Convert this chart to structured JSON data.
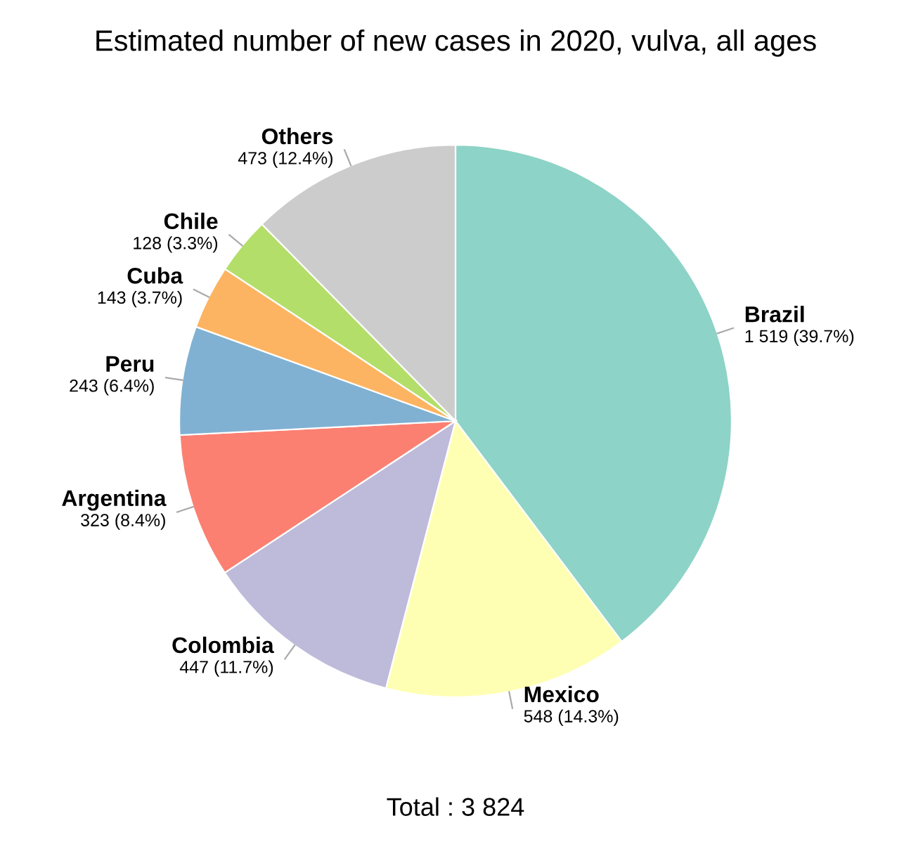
{
  "chart_data": {
    "type": "pie",
    "title": "Estimated number of new cases in 2020, vulva, all ages",
    "categories": [
      "Brazil",
      "Mexico",
      "Colombia",
      "Argentina",
      "Peru",
      "Cuba",
      "Chile",
      "Others"
    ],
    "values": [
      1519,
      548,
      447,
      323,
      243,
      143,
      128,
      473
    ],
    "value_labels": [
      "1 519 (39.7%)",
      "548 (14.3%)",
      "447 (11.7%)",
      "323 (8.4%)",
      "243 (6.4%)",
      "143 (3.7%)",
      "128 (3.3%)",
      "473 (12.4%)"
    ],
    "colors": [
      "#8dd3c7",
      "#ffffb3",
      "#bebada",
      "#fb8072",
      "#80b1d3",
      "#fdb462",
      "#b3de69",
      "#cccccc"
    ],
    "annotations": [
      "Total : 3 824"
    ]
  }
}
